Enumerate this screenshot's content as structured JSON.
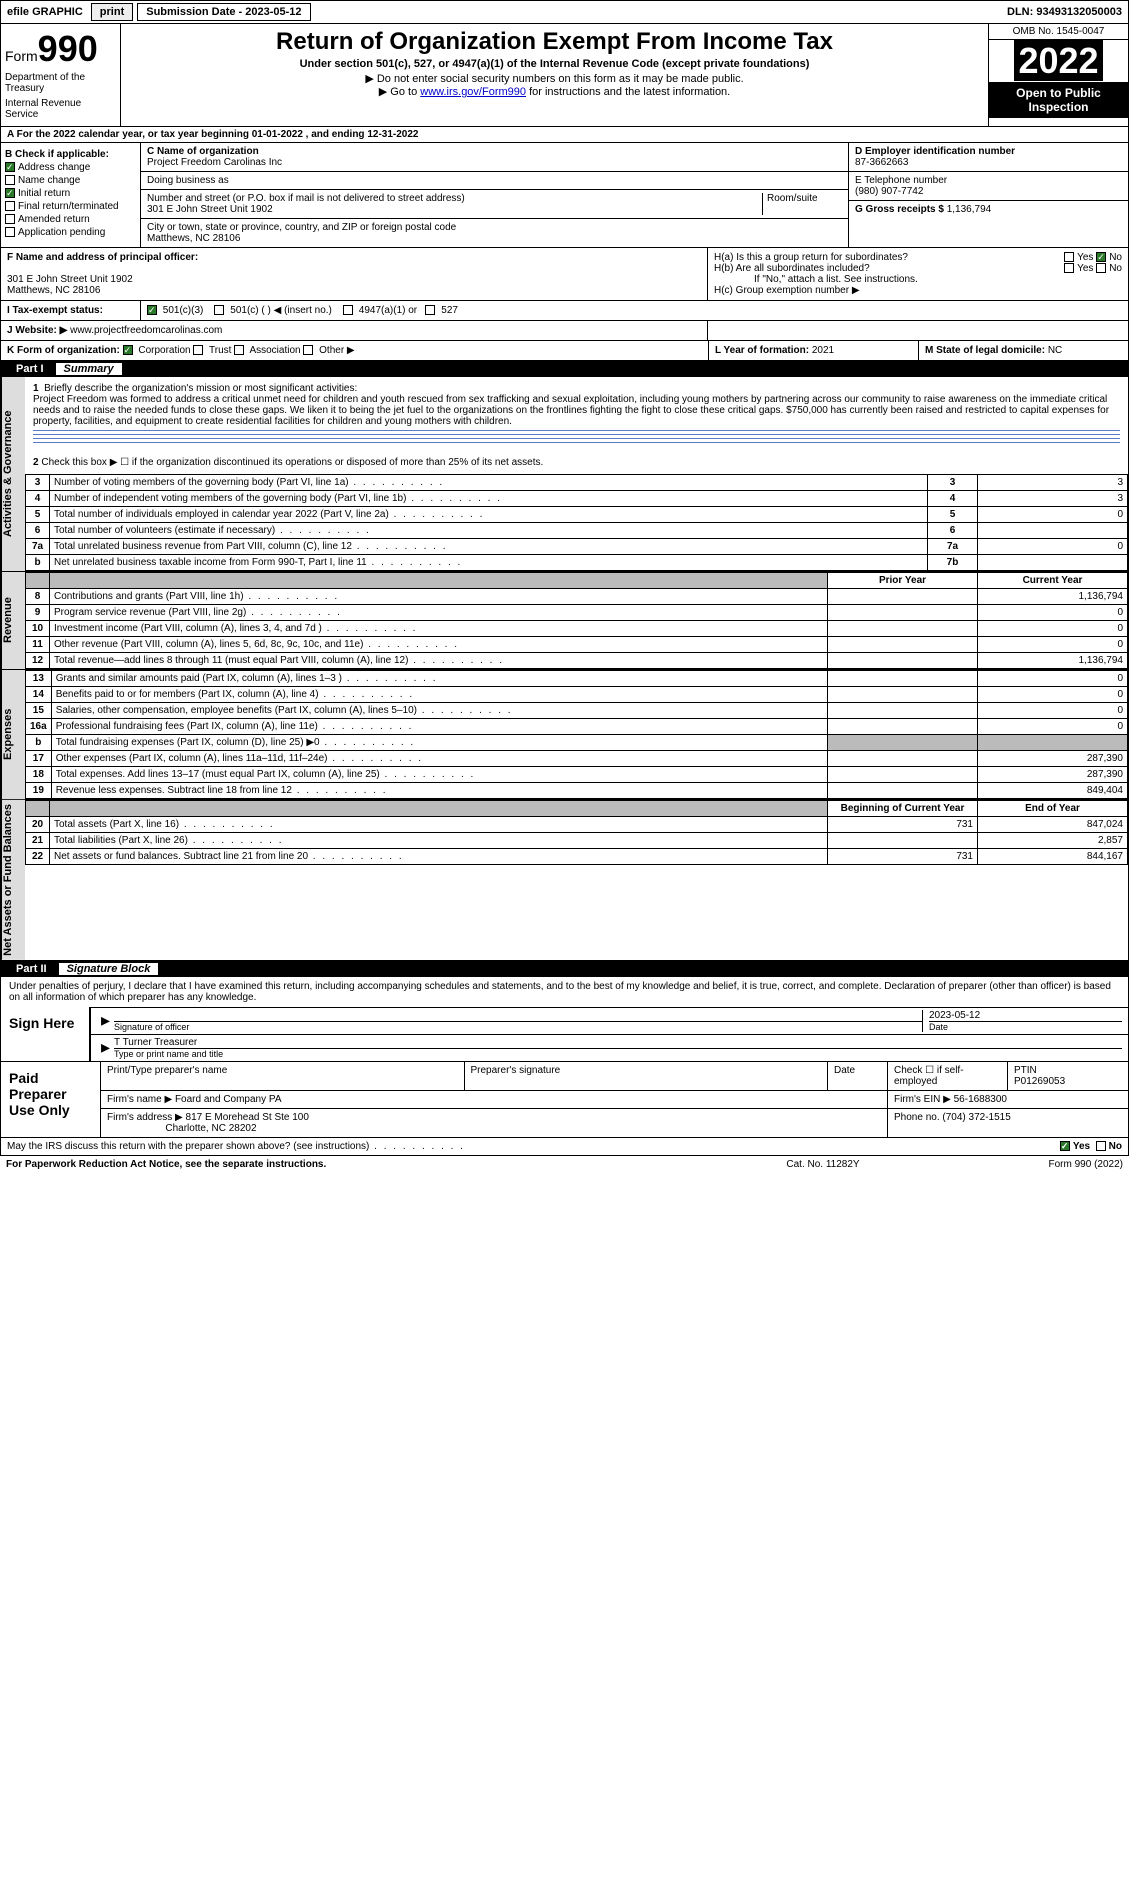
{
  "topbar": {
    "efile": "efile GRAPHIC",
    "print": "print",
    "sub_label": "Submission Date - 2023-05-12",
    "dln": "DLN: 93493132050003"
  },
  "header": {
    "form_label": "Form",
    "form_num": "990",
    "title": "Return of Organization Exempt From Income Tax",
    "sub1": "Under section 501(c), 527, or 4947(a)(1) of the Internal Revenue Code (except private foundations)",
    "sub2": "▶ Do not enter social security numbers on this form as it may be made public.",
    "sub3_pre": "▶ Go to ",
    "sub3_link": "www.irs.gov/Form990",
    "sub3_post": " for instructions and the latest information.",
    "omb": "OMB No. 1545-0047",
    "year": "2022",
    "open": "Open to Public Inspection",
    "dept": "Department of the Treasury",
    "irs": "Internal Revenue Service"
  },
  "row_a": "A For the 2022 calendar year, or tax year beginning 01-01-2022  , and ending 12-31-2022",
  "col_b": {
    "title": "B Check if applicable:",
    "addr": "Address change",
    "name": "Name change",
    "init": "Initial return",
    "final": "Final return/terminated",
    "amend": "Amended return",
    "app": "Application pending"
  },
  "col_c": {
    "c_label": "C Name of organization",
    "c_val": "Project Freedom Carolinas Inc",
    "dba_label": "Doing business as",
    "dba_val": "",
    "street_label": "Number and street (or P.O. box if mail is not delivered to street address)",
    "room_label": "Room/suite",
    "street_val": "301 E John Street Unit 1902",
    "city_label": "City or town, state or province, country, and ZIP or foreign postal code",
    "city_val": "Matthews, NC  28106"
  },
  "col_d": {
    "d_label": "D Employer identification number",
    "d_val": "87-3662663",
    "e_label": "E Telephone number",
    "e_val": "(980) 907-7742",
    "g_label": "G Gross receipts $",
    "g_val": "1,136,794"
  },
  "row_f": {
    "f_label": "F  Name and address of principal officer:",
    "f_val1": "301 E John Street Unit 1902",
    "f_val2": "Matthews, NC  28106",
    "ha": "H(a)  Is this a group return for subordinates?",
    "hb": "H(b)  Are all subordinates included?",
    "hb_note": "If \"No,\" attach a list. See instructions.",
    "hc": "H(c)  Group exemption number ▶",
    "yes": "Yes",
    "no": "No"
  },
  "row_i": {
    "label": "I  Tax-exempt status:",
    "o1": "501(c)(3)",
    "o2": "501(c) (  ) ◀ (insert no.)",
    "o3": "4947(a)(1) or",
    "o4": "527"
  },
  "row_j": {
    "label": "J  Website: ▶",
    "val": "www.projectfreedomcarolinas.com"
  },
  "row_k": {
    "label": "K Form of organization:",
    "corp": "Corporation",
    "trust": "Trust",
    "assoc": "Association",
    "other": "Other ▶",
    "l_label": "L Year of formation:",
    "l_val": "2021",
    "m_label": "M State of legal domicile:",
    "m_val": "NC"
  },
  "part1": {
    "num": "Part I",
    "title": "Summary"
  },
  "summary": {
    "l1_lab": "1",
    "l1": "Briefly describe the organization's mission or most significant activities:",
    "l1_text": "Project Freedom was formed to address a critical unmet need for children and youth rescued from sex trafficking and sexual exploitation, including young mothers by partnering across our community to raise awareness on the immediate critical needs and to raise the needed funds to close these gaps. We liken it to being the jet fuel to the organizations on the frontlines fighting the fight to close these critical gaps. $750,000 has currently been raised and restricted to capital expenses for property, facilities, and equipment to create residential facilities for children and young mothers with children.",
    "l2": "Check this box ▶ ☐  if the organization discontinued its operations or disposed of more than 25% of its net assets.",
    "vlab_ag": "Activities & Governance",
    "vlab_rev": "Revenue",
    "vlab_exp": "Expenses",
    "vlab_na": "Net Assets or Fund Balances",
    "rows_gov": [
      {
        "n": "3",
        "d": "Number of voting members of the governing body (Part VI, line 1a)",
        "b": "3",
        "v": "3"
      },
      {
        "n": "4",
        "d": "Number of independent voting members of the governing body (Part VI, line 1b)",
        "b": "4",
        "v": "3"
      },
      {
        "n": "5",
        "d": "Total number of individuals employed in calendar year 2022 (Part V, line 2a)",
        "b": "5",
        "v": "0"
      },
      {
        "n": "6",
        "d": "Total number of volunteers (estimate if necessary)",
        "b": "6",
        "v": ""
      },
      {
        "n": "7a",
        "d": "Total unrelated business revenue from Part VIII, column (C), line 12",
        "b": "7a",
        "v": "0"
      },
      {
        "n": "b",
        "d": "Net unrelated business taxable income from Form 990-T, Part I, line 11",
        "b": "7b",
        "v": ""
      }
    ],
    "hdr_prior": "Prior Year",
    "hdr_curr": "Current Year",
    "rows_rev": [
      {
        "n": "8",
        "d": "Contributions and grants (Part VIII, line 1h)",
        "p": "",
        "c": "1,136,794"
      },
      {
        "n": "9",
        "d": "Program service revenue (Part VIII, line 2g)",
        "p": "",
        "c": "0"
      },
      {
        "n": "10",
        "d": "Investment income (Part VIII, column (A), lines 3, 4, and 7d )",
        "p": "",
        "c": "0"
      },
      {
        "n": "11",
        "d": "Other revenue (Part VIII, column (A), lines 5, 6d, 8c, 9c, 10c, and 11e)",
        "p": "",
        "c": "0"
      },
      {
        "n": "12",
        "d": "Total revenue—add lines 8 through 11 (must equal Part VIII, column (A), line 12)",
        "p": "",
        "c": "1,136,794"
      }
    ],
    "rows_exp": [
      {
        "n": "13",
        "d": "Grants and similar amounts paid (Part IX, column (A), lines 1–3 )",
        "p": "",
        "c": "0"
      },
      {
        "n": "14",
        "d": "Benefits paid to or for members (Part IX, column (A), line 4)",
        "p": "",
        "c": "0"
      },
      {
        "n": "15",
        "d": "Salaries, other compensation, employee benefits (Part IX, column (A), lines 5–10)",
        "p": "",
        "c": "0"
      },
      {
        "n": "16a",
        "d": "Professional fundraising fees (Part IX, column (A), line 11e)",
        "p": "",
        "c": "0"
      },
      {
        "n": "b",
        "d": "Total fundraising expenses (Part IX, column (D), line 25) ▶0",
        "p": "grey",
        "c": "grey"
      },
      {
        "n": "17",
        "d": "Other expenses (Part IX, column (A), lines 11a–11d, 11f–24e)",
        "p": "",
        "c": "287,390"
      },
      {
        "n": "18",
        "d": "Total expenses. Add lines 13–17 (must equal Part IX, column (A), line 25)",
        "p": "",
        "c": "287,390"
      },
      {
        "n": "19",
        "d": "Revenue less expenses. Subtract line 18 from line 12",
        "p": "",
        "c": "849,404"
      }
    ],
    "hdr_begin": "Beginning of Current Year",
    "hdr_end": "End of Year",
    "rows_na": [
      {
        "n": "20",
        "d": "Total assets (Part X, line 16)",
        "p": "731",
        "c": "847,024"
      },
      {
        "n": "21",
        "d": "Total liabilities (Part X, line 26)",
        "p": "",
        "c": "2,857"
      },
      {
        "n": "22",
        "d": "Net assets or fund balances. Subtract line 21 from line 20",
        "p": "731",
        "c": "844,167"
      }
    ]
  },
  "part2": {
    "num": "Part II",
    "title": "Signature Block"
  },
  "sig": {
    "intro": "Under penalties of perjury, I declare that I have examined this return, including accompanying schedules and statements, and to the best of my knowledge and belief, it is true, correct, and complete. Declaration of preparer (other than officer) is based on all information of which preparer has any knowledge.",
    "sign_here": "Sign Here",
    "sig_officer": "Signature of officer",
    "date_lab": "Date",
    "date_val": "2023-05-12",
    "name_val": "T Turner  Treasurer",
    "name_lab": "Type or print name and title"
  },
  "paid": {
    "label": "Paid Preparer Use Only",
    "r1c1": "Print/Type preparer's name",
    "r1c2": "Preparer's signature",
    "r1c3": "Date",
    "r1c4a": "Check ☐ if self-employed",
    "r1c5": "PTIN",
    "r1c5v": "P01269053",
    "r2c1": "Firm's name   ▶",
    "r2c1v": "Foard and Company PA",
    "r2c2": "Firm's EIN ▶",
    "r2c2v": "56-1688300",
    "r3c1": "Firm's address ▶",
    "r3c1v": "817 E Morehead St Ste 100",
    "r3c1v2": "Charlotte, NC  28202",
    "r3c2": "Phone no.",
    "r3c2v": "(704) 372-1515"
  },
  "footer": {
    "discuss": "May the IRS discuss this return with the preparer shown above? (see instructions)",
    "yes": "Yes",
    "no": "No",
    "pra": "For Paperwork Reduction Act Notice, see the separate instructions.",
    "cat": "Cat. No. 11282Y",
    "form": "Form 990 (2022)"
  }
}
